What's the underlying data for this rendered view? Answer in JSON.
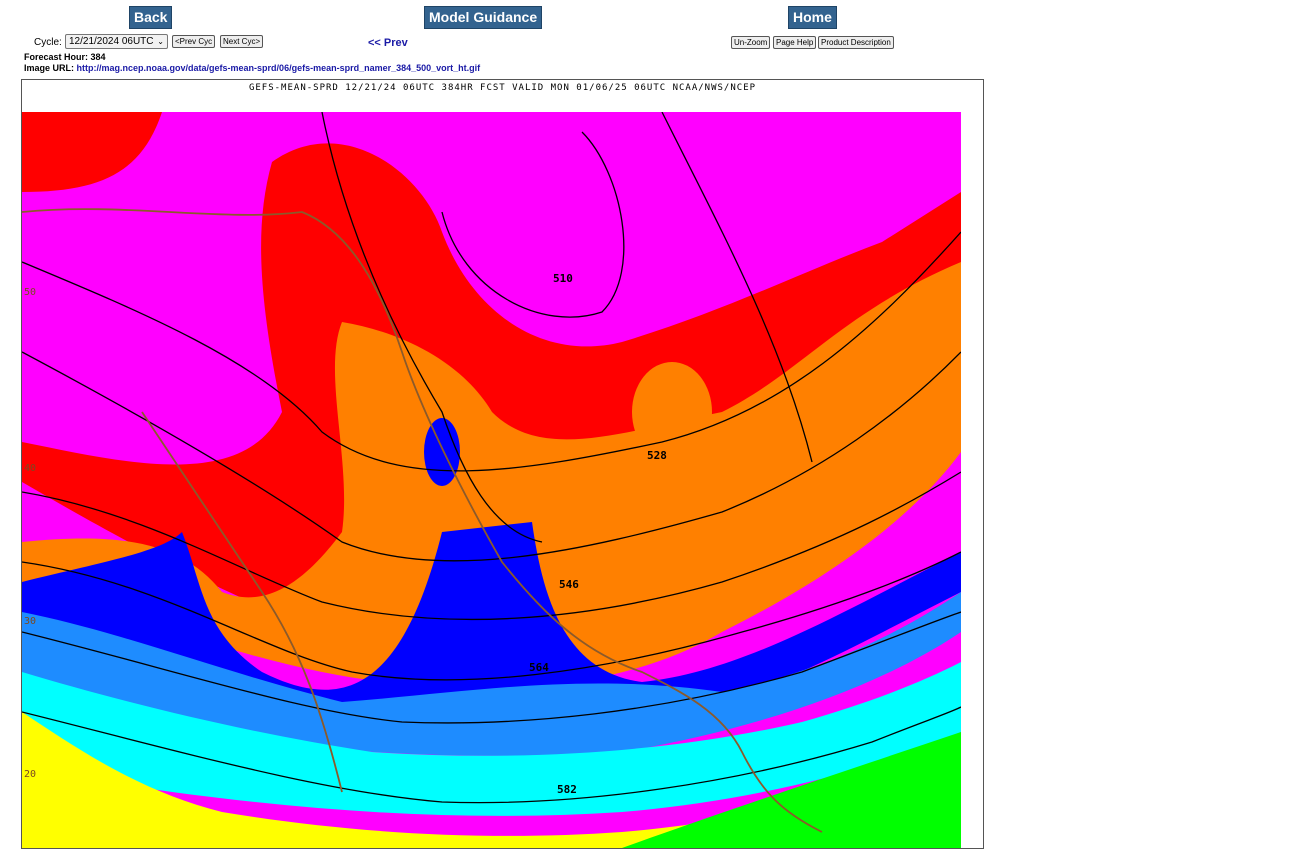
{
  "nav": {
    "back": "Back",
    "model_guidance": "Model Guidance",
    "home": "Home"
  },
  "cycle": {
    "label": "Cycle:",
    "selected": "12/21/2024 06UTC",
    "prev_button": "<Prev Cyc",
    "next_button": "Next Cyc>"
  },
  "prev_link": "<< Prev",
  "tools": {
    "unzoom": "Un-Zoom",
    "page_help": "Page Help",
    "product_description": "Product Description"
  },
  "forecast_hour": "Forecast Hour: 384",
  "image_url": {
    "label": "Image URL:",
    "url": "http://mag.ncep.noaa.gov/data/gefs-mean-sprd/06/gefs-mean-sprd_namer_384_500_vort_ht.gif"
  },
  "map": {
    "title": "GEFS-MEAN-SPRD 12/21/24 06UTC 384HR FCST VALID MON 01/06/25 06UTC NCAA/NWS/NCEP",
    "contour_labels": [
      "510",
      "528",
      "546",
      "564",
      "582"
    ],
    "lat_labels": [
      "50",
      "40",
      "30",
      "20"
    ],
    "colors": {
      "magenta": "#ff00ff",
      "red": "#ff0000",
      "orange": "#ff8000",
      "blue": "#0000ff",
      "mid_blue": "#1e8cff",
      "light_blue": "#00b4ff",
      "cyan": "#00ffff",
      "yellow": "#ffff00",
      "green": "#00ff00",
      "coast": "#8b5a2b"
    }
  }
}
